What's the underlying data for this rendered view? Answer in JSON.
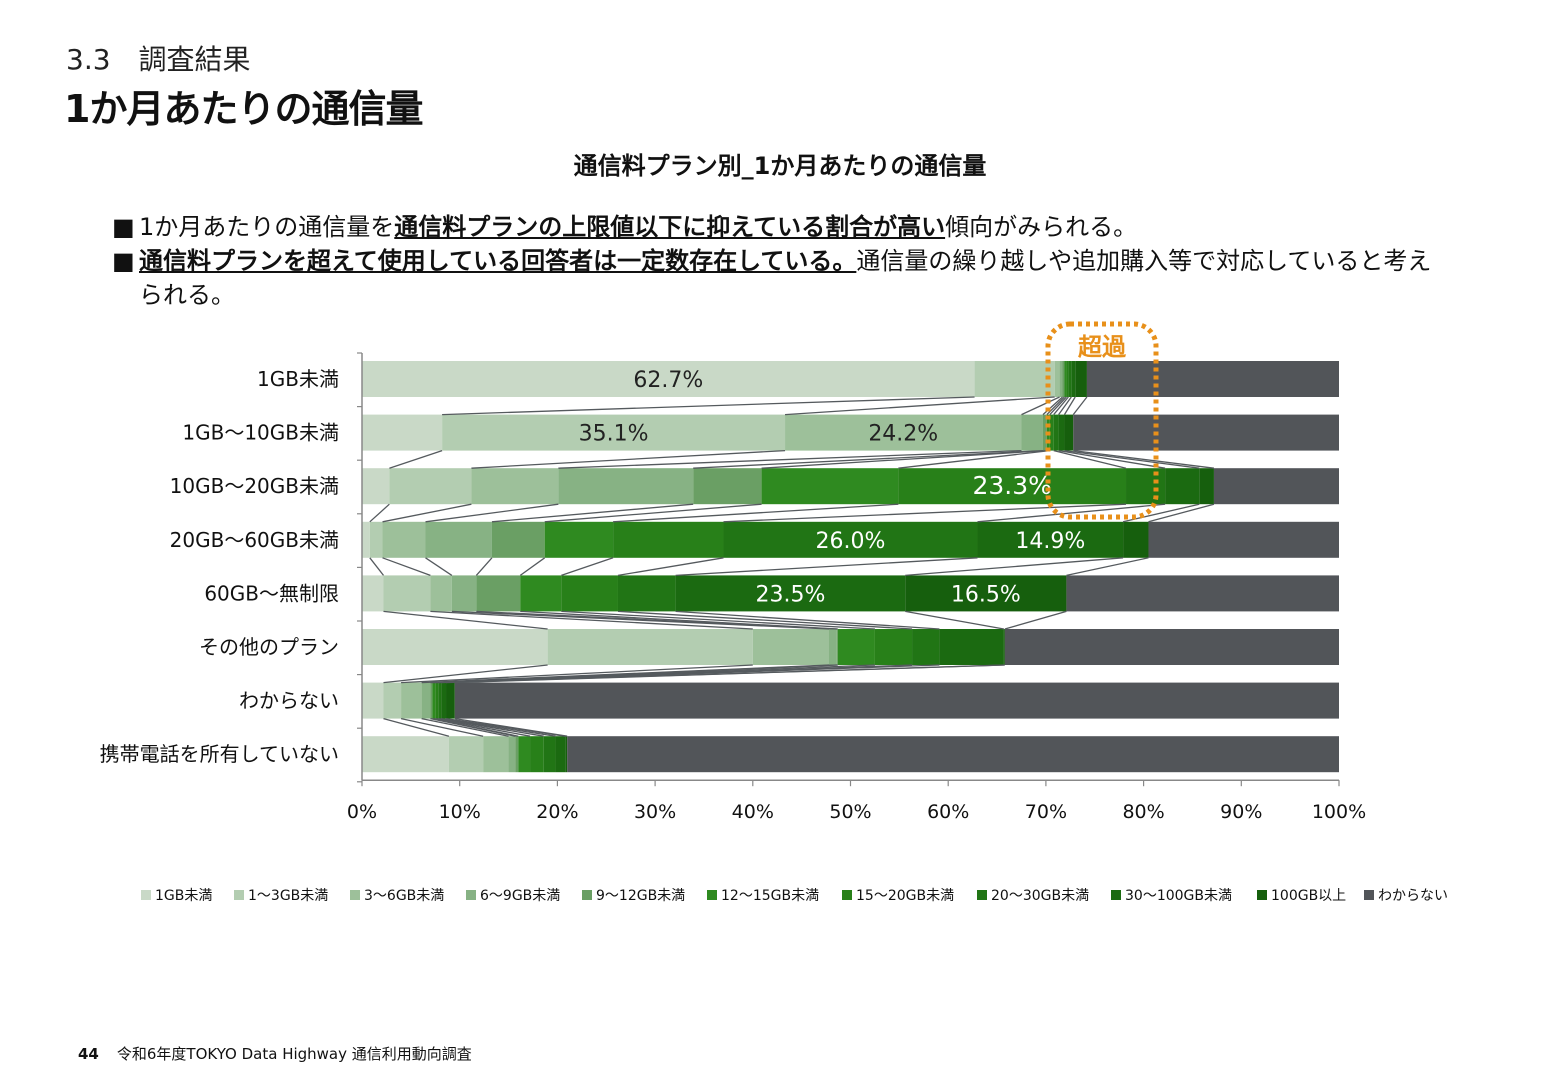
{
  "header": {
    "section": "3.3　調査結果",
    "title": "1か月あたりの通信量"
  },
  "bullets": [
    {
      "marker": "■",
      "parts": [
        {
          "text": "1か月あたりの通信量を",
          "underline": false
        },
        {
          "text": "通信料プランの上限値以下に抑えている割合が高い",
          "underline": true
        },
        {
          "text": "傾向がみられる。",
          "underline": false
        }
      ]
    },
    {
      "marker": "■",
      "parts": [
        {
          "text": "通信料プランを超えて使用している回答者は一定数存在している。",
          "underline": true
        },
        {
          "text": "通信量の繰り越しや追加購入等で対応していると考えられる。",
          "underline": false
        }
      ]
    }
  ],
  "footer": {
    "page": "44",
    "text": "令和6年度TOKYO Data Highway 通信利用動向調査"
  },
  "annotation": {
    "label": "超過",
    "color": "#e8901a"
  },
  "chart_data": {
    "type": "bar",
    "orientation": "horizontal",
    "stacked": "percent",
    "title": "通信料プラン別_1か月あたりの通信量",
    "categories": [
      "1GB未満",
      "1GB～10GB未満",
      "10GB～20GB未満",
      "20GB～60GB未満",
      "60GB～無制限",
      "その他のプラン",
      "わからない",
      "携帯電話を所有していない"
    ],
    "x_ticks": [
      "0%",
      "10%",
      "20%",
      "30%",
      "40%",
      "50%",
      "60%",
      "70%",
      "80%",
      "90%",
      "100%"
    ],
    "xlim": [
      0,
      100
    ],
    "legend_position": "bottom",
    "series": [
      {
        "name": "1GB未満",
        "color": "#c9d9c7",
        "values": [
          62.7,
          8.2,
          2.8,
          0.8,
          2.2,
          19.0,
          2.2,
          8.9
        ]
      },
      {
        "name": "1～3GB未満",
        "color": "#b3cdb1",
        "values": [
          8.2,
          35.1,
          8.4,
          1.3,
          4.8,
          21.0,
          1.8,
          3.5
        ]
      },
      {
        "name": "3～6GB未満",
        "color": "#9dc09a",
        "values": [
          0.5,
          24.2,
          8.9,
          4.4,
          2.2,
          7.8,
          2.1,
          2.6
        ]
      },
      {
        "name": "6～9GB未満",
        "color": "#87b284",
        "values": [
          0.3,
          2.2,
          13.8,
          6.8,
          2.5,
          0.8,
          0.9,
          0.7
        ]
      },
      {
        "name": "9～12GB未満",
        "color": "#6a9f64",
        "values": [
          0.2,
          0.4,
          7.0,
          5.4,
          4.5,
          0.1,
          0.2,
          0.3
        ]
      },
      {
        "name": "12～15GB未満",
        "color": "#2f8a20",
        "values": [
          0.2,
          0.3,
          14.0,
          7.0,
          4.2,
          3.8,
          0.3,
          1.2
        ]
      },
      {
        "name": "15～20GB未満",
        "color": "#288019",
        "values": [
          0.2,
          0.4,
          23.3,
          11.3,
          5.8,
          3.8,
          0.3,
          1.4
        ]
      },
      {
        "name": "20～30GB未満",
        "color": "#217515",
        "values": [
          0.3,
          0.5,
          4.0,
          26.0,
          5.9,
          2.8,
          0.3,
          1.2
        ]
      },
      {
        "name": "30～100GB未満",
        "color": "#1b6a11",
        "values": [
          0.4,
          0.6,
          3.5,
          14.9,
          23.5,
          6.6,
          0.5,
          1.0
        ]
      },
      {
        "name": "100GB以上",
        "color": "#165f0d",
        "values": [
          1.2,
          0.9,
          1.5,
          2.6,
          16.5,
          0.1,
          0.9,
          0.2
        ]
      },
      {
        "name": "わからない",
        "color": "#525559",
        "values": [
          25.8,
          27.2,
          12.8,
          19.5,
          27.9,
          34.2,
          90.5,
          79.0
        ]
      }
    ],
    "data_labels": [
      {
        "category_index": 0,
        "series_index": 0,
        "text": "62.7%",
        "color": "#222222"
      },
      {
        "category_index": 1,
        "series_index": 1,
        "text": "35.1%",
        "color": "#222222"
      },
      {
        "category_index": 1,
        "series_index": 2,
        "text": "24.2%",
        "color": "#222222"
      },
      {
        "category_index": 2,
        "series_index": 6,
        "text": "23.3%",
        "color": "#ffffff"
      },
      {
        "category_index": 3,
        "series_index": 7,
        "text": "26.0%",
        "color": "#ffffff"
      },
      {
        "category_index": 3,
        "series_index": 8,
        "text": "14.9%",
        "color": "#ffffff"
      },
      {
        "category_index": 4,
        "series_index": 8,
        "text": "23.5%",
        "color": "#ffffff"
      },
      {
        "category_index": 4,
        "series_index": 9,
        "text": "16.5%",
        "color": "#ffffff"
      }
    ],
    "grid": false,
    "series_lines": true
  }
}
